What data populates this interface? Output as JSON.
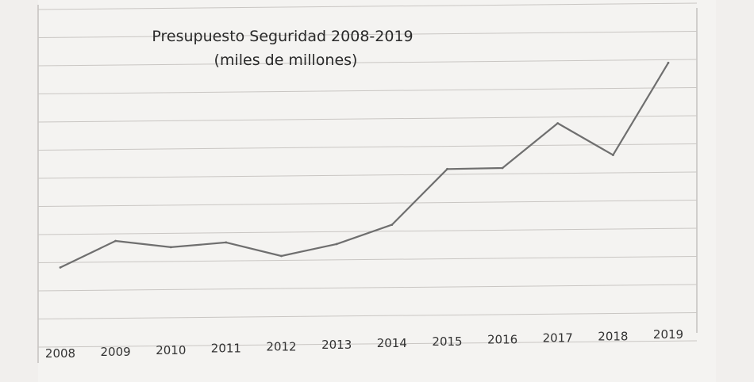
{
  "chart_data": {
    "type": "line",
    "title": "Presupuesto Seguridad 2008-2019",
    "subtitle": "(miles de millones)",
    "xlabel": "",
    "ylabel": "",
    "categories": [
      "2008",
      "2009",
      "2010",
      "2011",
      "2012",
      "2013",
      "2014",
      "2015",
      "2016",
      "2017",
      "2018",
      "2019"
    ],
    "series": [
      {
        "name": "Presupuesto Seguridad",
        "values": [
          20,
          27,
          25,
          26,
          22,
          25,
          30,
          45,
          45,
          57,
          48,
          73
        ]
      }
    ],
    "ylim": [
      0,
      80
    ],
    "grid": true,
    "legend": "none",
    "colors": {
      "line": "#6f6f6f",
      "grid": "#c9c6c3",
      "paper": "#f4f3f1",
      "background": "#efedeb"
    }
  }
}
